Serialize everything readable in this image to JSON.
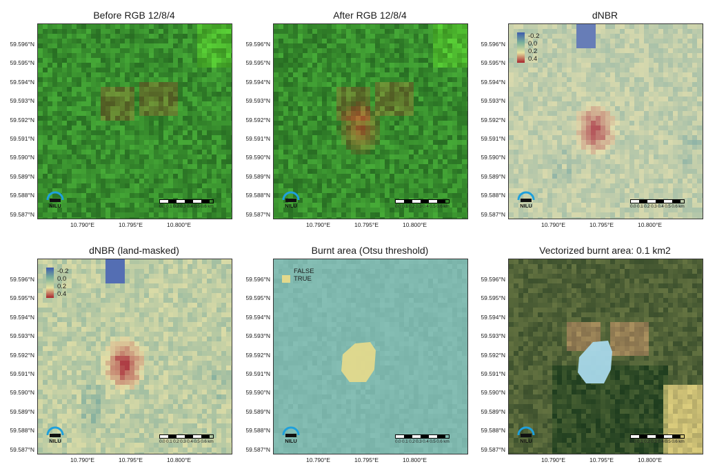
{
  "panels": [
    {
      "title": "Before RGB 12/8/4",
      "kind": "rgb_before",
      "legend": null
    },
    {
      "title": "After RGB 12/8/4",
      "kind": "rgb_after",
      "legend": null
    },
    {
      "title": "dNBR",
      "kind": "dnbr",
      "legend": {
        "type": "gradient",
        "labels": [
          "-0.2",
          "0.0",
          "0.2",
          "0.4"
        ]
      }
    },
    {
      "title": "dNBR (land-masked)",
      "kind": "dnbr_masked",
      "legend": {
        "type": "gradient",
        "labels": [
          "-0.2",
          "0.0",
          "0.2",
          "0.4"
        ]
      }
    },
    {
      "title": "Burnt area (Otsu threshold)",
      "kind": "otsu",
      "legend": {
        "type": "categorical",
        "items": [
          {
            "label": "FALSE",
            "color": "#7fb8ae"
          },
          {
            "label": "TRUE",
            "color": "#e3d98c"
          }
        ]
      }
    },
    {
      "title": "Vectorized burnt area: 0.1 km2",
      "kind": "vector",
      "legend": null
    }
  ],
  "y_ticks": [
    "59.596°N",
    "59.595°N",
    "59.594°N",
    "59.593°N",
    "59.592°N",
    "59.591°N",
    "59.590°N",
    "59.589°N",
    "59.588°N",
    "59.587°N"
  ],
  "x_ticks": [
    "10.790°E",
    "10.795°E",
    "10.800°E"
  ],
  "scalebar_labels": "0.0 0.1 0.2 0.3 0.4 0.5 0.6 km",
  "logo_text": "NILU",
  "colors": {
    "dnbr_low": "#3e5cad",
    "dnbr_mid": "#e6e2a0",
    "dnbr_high": "#a8242c",
    "otsu_false": "#7fb8ae",
    "otsu_true": "#e3d98c",
    "burn_polygon": "#a8d8ea",
    "logo_blue": "#1ea0dc"
  },
  "chart_data": {
    "type": "heatmap",
    "variable": "dNBR",
    "x_range_lon": [
      10.786,
      10.806
    ],
    "y_range_lat": [
      59.5868,
      59.597
    ],
    "color_scale": [
      -0.2,
      0.0,
      0.2,
      0.4
    ],
    "burn_center": {
      "lon": 10.7948,
      "lat": 59.5917
    },
    "burnt_area_km2": 0.1
  }
}
